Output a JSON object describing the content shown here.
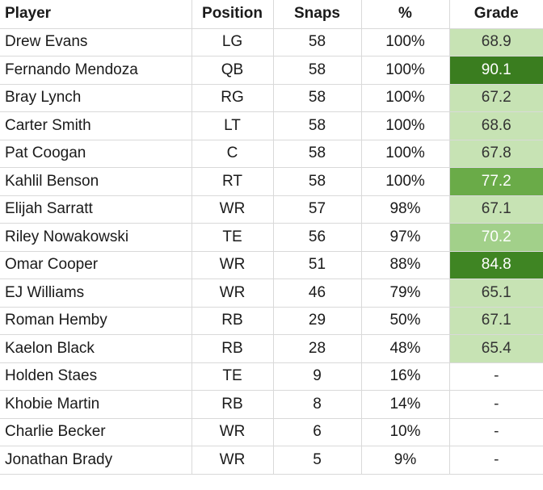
{
  "headers": {
    "player": "Player",
    "position": "Position",
    "snaps": "Snaps",
    "pct": "%",
    "grade": "Grade"
  },
  "rows": [
    {
      "player": "Drew Evans",
      "position": "LG",
      "snaps": "58",
      "pct": "100%",
      "grade": "68.9",
      "grade_bg": "#c7e3b4",
      "grade_fg": "#333333"
    },
    {
      "player": "Fernando Mendoza",
      "position": "QB",
      "snaps": "58",
      "pct": "100%",
      "grade": "90.1",
      "grade_bg": "#3a7d1f",
      "grade_fg": "#ffffff"
    },
    {
      "player": "Bray Lynch",
      "position": "RG",
      "snaps": "58",
      "pct": "100%",
      "grade": "67.2",
      "grade_bg": "#c7e3b4",
      "grade_fg": "#333333"
    },
    {
      "player": "Carter Smith",
      "position": "LT",
      "snaps": "58",
      "pct": "100%",
      "grade": "68.6",
      "grade_bg": "#c7e3b4",
      "grade_fg": "#333333"
    },
    {
      "player": "Pat Coogan",
      "position": "C",
      "snaps": "58",
      "pct": "100%",
      "grade": "67.8",
      "grade_bg": "#c7e3b4",
      "grade_fg": "#333333"
    },
    {
      "player": "Kahlil Benson",
      "position": "RT",
      "snaps": "58",
      "pct": "100%",
      "grade": "77.2",
      "grade_bg": "#6aab48",
      "grade_fg": "#ffffff"
    },
    {
      "player": "Elijah Sarratt",
      "position": "WR",
      "snaps": "57",
      "pct": "98%",
      "grade": "67.1",
      "grade_bg": "#c7e3b4",
      "grade_fg": "#333333"
    },
    {
      "player": "Riley Nowakowski",
      "position": "TE",
      "snaps": "56",
      "pct": "97%",
      "grade": "70.2",
      "grade_bg": "#a2d08a",
      "grade_fg": "#ffffff"
    },
    {
      "player": "Omar Cooper",
      "position": "WR",
      "snaps": "51",
      "pct": "88%",
      "grade": "84.8",
      "grade_bg": "#3f8523",
      "grade_fg": "#ffffff"
    },
    {
      "player": "EJ Williams",
      "position": "WR",
      "snaps": "46",
      "pct": "79%",
      "grade": "65.1",
      "grade_bg": "#c7e3b4",
      "grade_fg": "#333333"
    },
    {
      "player": "Roman Hemby",
      "position": "RB",
      "snaps": "29",
      "pct": "50%",
      "grade": "67.1",
      "grade_bg": "#c7e3b4",
      "grade_fg": "#333333"
    },
    {
      "player": "Kaelon Black",
      "position": "RB",
      "snaps": "28",
      "pct": "48%",
      "grade": "65.4",
      "grade_bg": "#c7e3b4",
      "grade_fg": "#333333"
    },
    {
      "player": "Holden Staes",
      "position": "TE",
      "snaps": "9",
      "pct": "16%",
      "grade": "-",
      "grade_bg": "#ffffff",
      "grade_fg": "#333333"
    },
    {
      "player": "Khobie Martin",
      "position": "RB",
      "snaps": "8",
      "pct": "14%",
      "grade": "-",
      "grade_bg": "#ffffff",
      "grade_fg": "#333333"
    },
    {
      "player": "Charlie Becker",
      "position": "WR",
      "snaps": "6",
      "pct": "10%",
      "grade": "-",
      "grade_bg": "#ffffff",
      "grade_fg": "#333333"
    },
    {
      "player": "Jonathan Brady",
      "position": "WR",
      "snaps": "5",
      "pct": "9%",
      "grade": "-",
      "grade_bg": "#ffffff",
      "grade_fg": "#333333"
    }
  ]
}
